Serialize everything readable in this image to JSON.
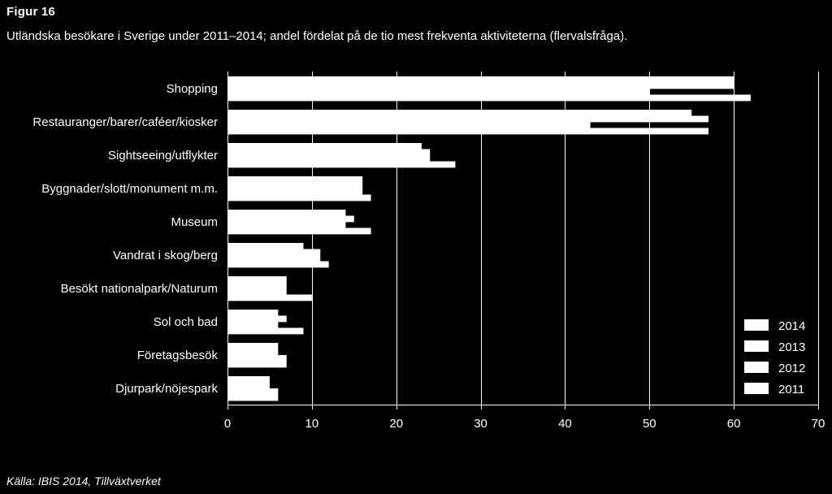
{
  "figure": {
    "label": "Figur 16",
    "subtitle": "Utländska besökare i Sverige under 2011–2014; andel fördelat på de tio mest frekventa aktiviteterna (flervalsfråga).",
    "source": "Källa: IBIS 2014, Tillväxtverket"
  },
  "colors": {
    "background": "#000000",
    "bars": "#ffffff",
    "grid": "#ffffff",
    "text": "#ffffff"
  },
  "chart_data": {
    "type": "bar",
    "orientation": "horizontal",
    "categories": [
      "Shopping",
      "Restauranger/barer/caféer/kiosker",
      "Sightseeing/utflykter",
      "Byggnader/slott/monument m.m.",
      "Museum",
      "Vandrat i skog/berg",
      "Besökt nationalpark/Naturum",
      "Sol och bad",
      "Företagsbesök",
      "Djurpark/nöjespark"
    ],
    "series": [
      {
        "name": "2014",
        "values": [
          60,
          55,
          23,
          16,
          14,
          9,
          7,
          6,
          6,
          5
        ]
      },
      {
        "name": "2013",
        "values": [
          60,
          57,
          24,
          16,
          15,
          11,
          7,
          7,
          6,
          5
        ]
      },
      {
        "name": "2012",
        "values": [
          50,
          43,
          24,
          16,
          14,
          11,
          7,
          6,
          7,
          6
        ]
      },
      {
        "name": "2011",
        "values": [
          62,
          57,
          27,
          17,
          17,
          12,
          10,
          9,
          7,
          6
        ]
      }
    ],
    "xlim": [
      0,
      70
    ],
    "xticks": [
      "0",
      "10",
      "20",
      "30",
      "40",
      "50",
      "60",
      "70"
    ],
    "grid": true,
    "legend_position": "bottom-right"
  }
}
